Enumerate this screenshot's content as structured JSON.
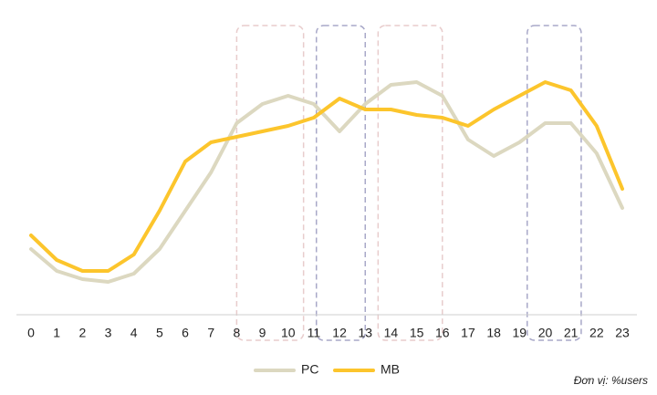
{
  "chart_data": {
    "type": "line",
    "categories": [
      "0",
      "1",
      "2",
      "3",
      "4",
      "5",
      "6",
      "7",
      "8",
      "9",
      "10",
      "11",
      "12",
      "13",
      "14",
      "15",
      "16",
      "17",
      "18",
      "19",
      "20",
      "21",
      "22",
      "23"
    ],
    "series": [
      {
        "name": "PC",
        "color": "#dcd8c0",
        "values": [
          24,
          16,
          13,
          12,
          15,
          24,
          38,
          52,
          70,
          77,
          80,
          77,
          67,
          77,
          84,
          85,
          80,
          64,
          58,
          63,
          70,
          70,
          59,
          39
        ]
      },
      {
        "name": "MB",
        "color": "#fcc52c",
        "values": [
          29,
          20,
          16,
          16,
          22,
          38,
          56,
          63,
          65,
          67,
          69,
          72,
          79,
          75,
          75,
          73,
          72,
          69,
          75,
          80,
          85,
          82,
          69,
          46
        ]
      }
    ],
    "ylim": [
      0,
      100
    ],
    "highlights": [
      {
        "from": 8,
        "to": 10.6,
        "color": "#e8cccc"
      },
      {
        "from": 11.1,
        "to": 13,
        "color": "#a8a8c8"
      },
      {
        "from": 13.5,
        "to": 16,
        "color": "#e8cccc"
      },
      {
        "from": 19.3,
        "to": 21.4,
        "color": "#a8a8c8"
      }
    ],
    "legend": "bottom",
    "note": "Đơn vị: %users"
  }
}
